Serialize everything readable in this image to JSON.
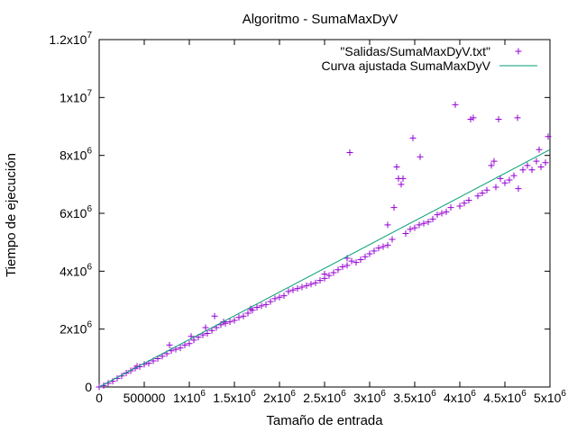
{
  "chart_data": {
    "type": "scatter",
    "title": "Algoritmo - SumaMaxDyV",
    "xlabel": "Tamaño de entrada",
    "ylabel": "Tiempo de ejecución",
    "xlim": [
      0,
      5000000
    ],
    "ylim": [
      0,
      12000000
    ],
    "grid": false,
    "legend_position": "top-right",
    "x_ticks": [
      {
        "value": 0,
        "base": "0",
        "exp": ""
      },
      {
        "value": 500000,
        "base": "500000",
        "exp": ""
      },
      {
        "value": 1000000,
        "base": "1x10",
        "exp": "6"
      },
      {
        "value": 1500000,
        "base": "1.5x10",
        "exp": "6"
      },
      {
        "value": 2000000,
        "base": "2x10",
        "exp": "6"
      },
      {
        "value": 2500000,
        "base": "2.5x10",
        "exp": "6"
      },
      {
        "value": 3000000,
        "base": "3x10",
        "exp": "6"
      },
      {
        "value": 3500000,
        "base": "3.5x10",
        "exp": "6"
      },
      {
        "value": 4000000,
        "base": "4x10",
        "exp": "6"
      },
      {
        "value": 4500000,
        "base": "4.5x10",
        "exp": "6"
      },
      {
        "value": 5000000,
        "base": "5x10",
        "exp": "6"
      }
    ],
    "y_ticks": [
      {
        "value": 0,
        "base": "0",
        "exp": ""
      },
      {
        "value": 2000000,
        "base": "2x10",
        "exp": "6"
      },
      {
        "value": 4000000,
        "base": "4x10",
        "exp": "6"
      },
      {
        "value": 6000000,
        "base": "6x10",
        "exp": "6"
      },
      {
        "value": 8000000,
        "base": "8x10",
        "exp": "6"
      },
      {
        "value": 10000000,
        "base": "1x10",
        "exp": "7"
      },
      {
        "value": 12000000,
        "base": "1.2x10",
        "exp": "7"
      }
    ],
    "series": [
      {
        "name": "\"Salidas/SumaMaxDyV.txt\"",
        "kind": "points",
        "marker": "+",
        "color": "#9400d3",
        "points": [
          [
            0,
            0
          ],
          [
            50000,
            50000
          ],
          [
            100000,
            130000
          ],
          [
            150000,
            200000
          ],
          [
            200000,
            300000
          ],
          [
            250000,
            380000
          ],
          [
            300000,
            480000
          ],
          [
            350000,
            560000
          ],
          [
            400000,
            650000
          ],
          [
            420000,
            720000
          ],
          [
            450000,
            700000
          ],
          [
            500000,
            780000
          ],
          [
            550000,
            820000
          ],
          [
            600000,
            900000
          ],
          [
            650000,
            980000
          ],
          [
            700000,
            1060000
          ],
          [
            750000,
            1150000
          ],
          [
            780000,
            1450000
          ],
          [
            800000,
            1250000
          ],
          [
            850000,
            1300000
          ],
          [
            900000,
            1350000
          ],
          [
            950000,
            1450000
          ],
          [
            1000000,
            1500000
          ],
          [
            1020000,
            1750000
          ],
          [
            1050000,
            1620000
          ],
          [
            1100000,
            1720000
          ],
          [
            1150000,
            1800000
          ],
          [
            1180000,
            2050000
          ],
          [
            1200000,
            1850000
          ],
          [
            1250000,
            1950000
          ],
          [
            1280000,
            2450000
          ],
          [
            1300000,
            2050000
          ],
          [
            1350000,
            2150000
          ],
          [
            1380000,
            2250000
          ],
          [
            1400000,
            2200000
          ],
          [
            1450000,
            2250000
          ],
          [
            1500000,
            2300000
          ],
          [
            1550000,
            2400000
          ],
          [
            1600000,
            2450000
          ],
          [
            1650000,
            2550000
          ],
          [
            1680000,
            2700000
          ],
          [
            1700000,
            2650000
          ],
          [
            1750000,
            2750000
          ],
          [
            1800000,
            2800000
          ],
          [
            1850000,
            2850000
          ],
          [
            1900000,
            2950000
          ],
          [
            1950000,
            3050000
          ],
          [
            2000000,
            3100000
          ],
          [
            2050000,
            3150000
          ],
          [
            2100000,
            3300000
          ],
          [
            2150000,
            3350000
          ],
          [
            2200000,
            3400000
          ],
          [
            2250000,
            3450000
          ],
          [
            2300000,
            3500000
          ],
          [
            2350000,
            3550000
          ],
          [
            2400000,
            3600000
          ],
          [
            2450000,
            3680000
          ],
          [
            2500000,
            3750000
          ],
          [
            2500000,
            3900000
          ],
          [
            2550000,
            3850000
          ],
          [
            2600000,
            3950000
          ],
          [
            2650000,
            4050000
          ],
          [
            2700000,
            4150000
          ],
          [
            2750000,
            4200000
          ],
          [
            2750000,
            4450000
          ],
          [
            2780000,
            8100000
          ],
          [
            2800000,
            4350000
          ],
          [
            2850000,
            4300000
          ],
          [
            2900000,
            4400000
          ],
          [
            2950000,
            4500000
          ],
          [
            3000000,
            4600000
          ],
          [
            3050000,
            4700000
          ],
          [
            3100000,
            4800000
          ],
          [
            3150000,
            4850000
          ],
          [
            3200000,
            4900000
          ],
          [
            3200000,
            5600000
          ],
          [
            3250000,
            5100000
          ],
          [
            3270000,
            6200000
          ],
          [
            3300000,
            7600000
          ],
          [
            3320000,
            7200000
          ],
          [
            3350000,
            7000000
          ],
          [
            3370000,
            7200000
          ],
          [
            3400000,
            5300000
          ],
          [
            3450000,
            5450000
          ],
          [
            3480000,
            8600000
          ],
          [
            3500000,
            5500000
          ],
          [
            3550000,
            5600000
          ],
          [
            3560000,
            7950000
          ],
          [
            3600000,
            5650000
          ],
          [
            3650000,
            5700000
          ],
          [
            3700000,
            5800000
          ],
          [
            3750000,
            5950000
          ],
          [
            3800000,
            6000000
          ],
          [
            3850000,
            6050000
          ],
          [
            3900000,
            6200000
          ],
          [
            3950000,
            9750000
          ],
          [
            4000000,
            6250000
          ],
          [
            4050000,
            6350000
          ],
          [
            4100000,
            6450000
          ],
          [
            4120000,
            9250000
          ],
          [
            4150000,
            9300000
          ],
          [
            4200000,
            6600000
          ],
          [
            4250000,
            6700000
          ],
          [
            4300000,
            6800000
          ],
          [
            4350000,
            7650000
          ],
          [
            4380000,
            7800000
          ],
          [
            4400000,
            6900000
          ],
          [
            4430000,
            9250000
          ],
          [
            4450000,
            7200000
          ],
          [
            4500000,
            7050000
          ],
          [
            4550000,
            7150000
          ],
          [
            4600000,
            7300000
          ],
          [
            4640000,
            9300000
          ],
          [
            4650000,
            6850000
          ],
          [
            4700000,
            7500000
          ],
          [
            4750000,
            7650000
          ],
          [
            4800000,
            7500000
          ],
          [
            4850000,
            7800000
          ],
          [
            4880000,
            8200000
          ],
          [
            4900000,
            7600000
          ],
          [
            4950000,
            7750000
          ],
          [
            4980000,
            8650000
          ]
        ]
      },
      {
        "name": "Curva ajustada SumaMaxDyV",
        "kind": "line",
        "color": "#009e73",
        "points": [
          [
            0,
            0
          ],
          [
            5000000,
            8200000
          ]
        ]
      }
    ]
  }
}
